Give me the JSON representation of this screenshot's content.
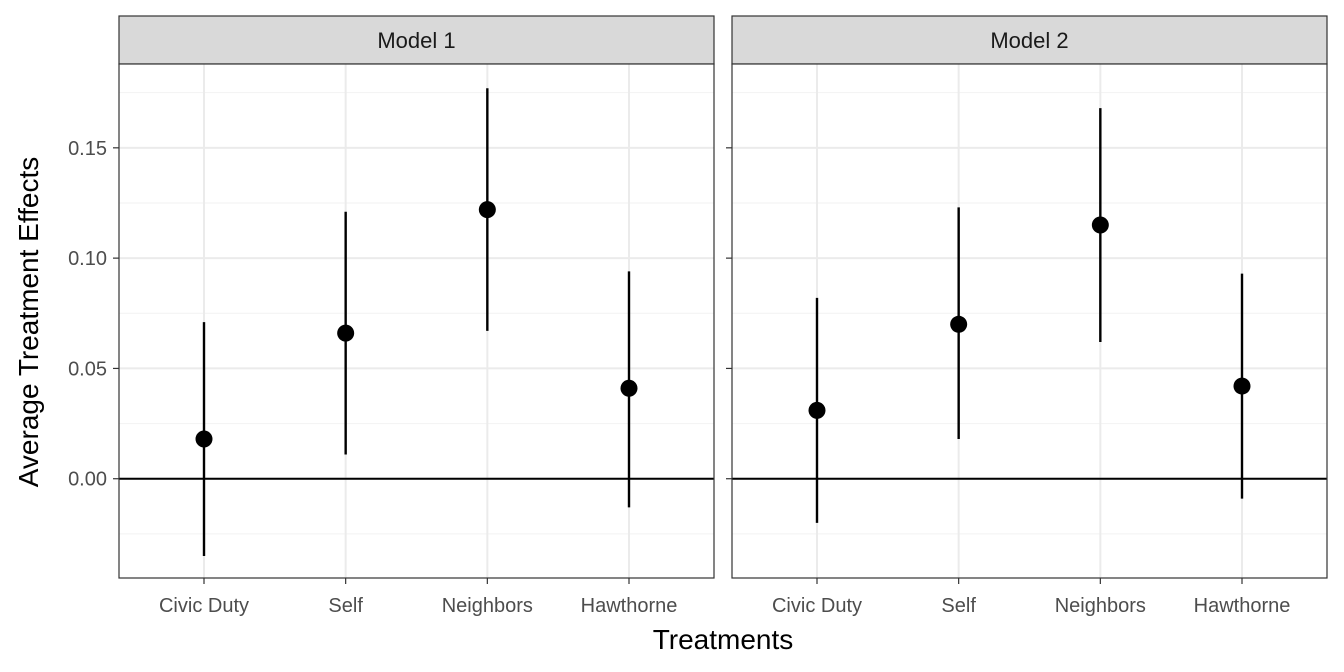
{
  "chart_data": {
    "type": "scatter",
    "facet_by": "model",
    "title": "",
    "xlabel": "Treatments",
    "ylabel": "Average Treatment Effects",
    "categories": [
      "Civic Duty",
      "Self",
      "Neighbors",
      "Hawthorne"
    ],
    "ylim": [
      -0.045,
      0.188
    ],
    "yticks": [
      "0.00",
      "0.05",
      "0.10",
      "0.15"
    ],
    "reference_line": 0,
    "grid": true,
    "panels": [
      {
        "label": "Model 1",
        "points": [
          {
            "category": "Civic Duty",
            "estimate": 0.018,
            "lower": -0.035,
            "upper": 0.071
          },
          {
            "category": "Self",
            "estimate": 0.066,
            "lower": 0.011,
            "upper": 0.121
          },
          {
            "category": "Neighbors",
            "estimate": 0.122,
            "lower": 0.067,
            "upper": 0.177
          },
          {
            "category": "Hawthorne",
            "estimate": 0.041,
            "lower": -0.013,
            "upper": 0.094
          }
        ]
      },
      {
        "label": "Model 2",
        "points": [
          {
            "category": "Civic Duty",
            "estimate": 0.031,
            "lower": -0.02,
            "upper": 0.082
          },
          {
            "category": "Self",
            "estimate": 0.07,
            "lower": 0.018,
            "upper": 0.123
          },
          {
            "category": "Neighbors",
            "estimate": 0.115,
            "lower": 0.062,
            "upper": 0.168
          },
          {
            "category": "Hawthorne",
            "estimate": 0.042,
            "lower": -0.009,
            "upper": 0.093
          }
        ]
      }
    ],
    "colors": {
      "point": "#000000",
      "errorbar": "#000000",
      "strip_fill": "#d9d9d9",
      "panel_border": "#333333",
      "grid": "#ebebeb"
    }
  }
}
